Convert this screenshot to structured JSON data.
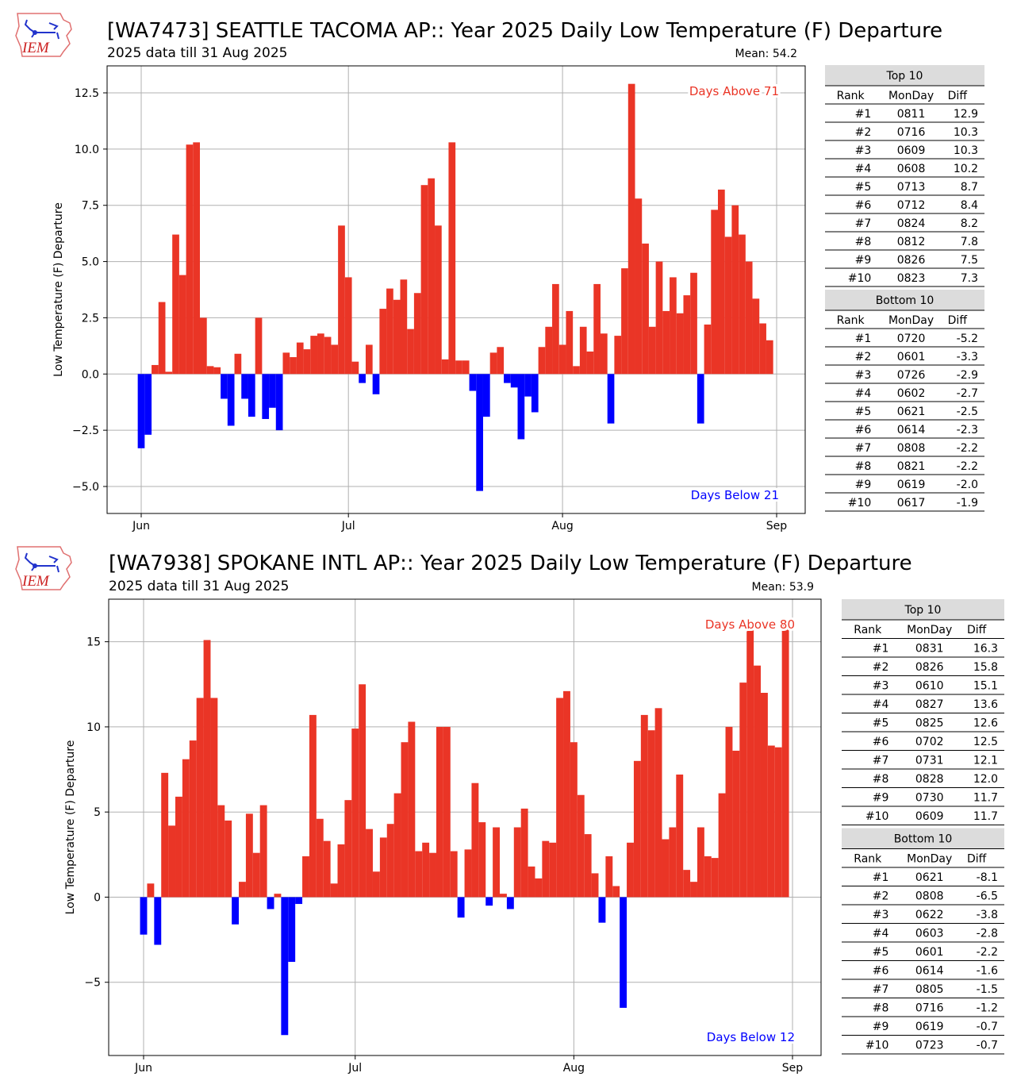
{
  "colors": {
    "above": "#ea3526",
    "below": "#0000ff",
    "grid": "#b0b0b0",
    "table_band": "#dcdcdc"
  },
  "chart_data": [
    {
      "type": "bar",
      "logo_text": "IEM",
      "title": "[WA7473] SEATTLE TACOMA AP:: Year 2025 Daily Low Temperature (F) Departure",
      "subtitle": "2025 data till 31 Aug 2025",
      "mean_label": "Mean: 54.2",
      "ylabel": "Low Temperature (F) Departure",
      "ylim": [
        -6.2,
        13.7
      ],
      "yticks": [
        12.5,
        10.0,
        7.5,
        5.0,
        2.5,
        0.0,
        -2.5,
        -5.0
      ],
      "ytick_labels": [
        "12.5",
        "10.0",
        "7.5",
        "5.0",
        "2.5",
        "0.0",
        "−2.5",
        "−5.0"
      ],
      "xticks": [
        {
          "day": 0,
          "label": "Jun"
        },
        {
          "day": 30,
          "label": "Jul"
        },
        {
          "day": 61,
          "label": "Aug"
        },
        {
          "day": 92,
          "label": "Sep"
        }
      ],
      "start_date": "Jun 1",
      "days_above_label": "Days Above 71",
      "days_below_label": "Days Below 21",
      "values": [
        -3.3,
        -2.7,
        0.4,
        3.2,
        0.1,
        6.2,
        4.4,
        10.2,
        10.3,
        2.5,
        0.35,
        0.3,
        -1.1,
        -2.3,
        0.9,
        -1.1,
        -1.9,
        2.5,
        -2.0,
        -1.5,
        -2.5,
        0.95,
        0.75,
        1.4,
        1.1,
        1.7,
        1.8,
        1.65,
        1.3,
        6.6,
        4.3,
        0.55,
        -0.4,
        1.3,
        -0.9,
        2.9,
        3.8,
        3.3,
        4.2,
        2.0,
        3.6,
        8.4,
        8.7,
        6.6,
        0.65,
        10.3,
        0.6,
        0.6,
        -0.75,
        -5.2,
        -1.9,
        0.95,
        1.2,
        -0.4,
        -0.6,
        -2.9,
        -1.0,
        -1.7,
        1.2,
        2.1,
        4.0,
        1.3,
        2.8,
        0.35,
        2.1,
        1.0,
        4.0,
        1.8,
        -2.2,
        1.7,
        4.7,
        12.9,
        7.8,
        5.8,
        2.1,
        5.0,
        2.8,
        4.3,
        2.7,
        3.5,
        4.5,
        -2.2,
        2.2,
        7.3,
        8.2,
        6.1,
        7.5,
        6.2,
        5.0,
        3.35,
        2.25,
        1.5
      ],
      "table": {
        "top_header": "Top 10",
        "bottom_header": "Bottom 10",
        "columns": [
          "Rank",
          "MonDay",
          "Diff"
        ],
        "top": [
          [
            "#1",
            "0811",
            "12.9"
          ],
          [
            "#2",
            "0716",
            "10.3"
          ],
          [
            "#3",
            "0609",
            "10.3"
          ],
          [
            "#4",
            "0608",
            "10.2"
          ],
          [
            "#5",
            "0713",
            "8.7"
          ],
          [
            "#6",
            "0712",
            "8.4"
          ],
          [
            "#7",
            "0824",
            "8.2"
          ],
          [
            "#8",
            "0812",
            "7.8"
          ],
          [
            "#9",
            "0826",
            "7.5"
          ],
          [
            "#10",
            "0823",
            "7.3"
          ]
        ],
        "bottom": [
          [
            "#1",
            "0720",
            "-5.2"
          ],
          [
            "#2",
            "0601",
            "-3.3"
          ],
          [
            "#3",
            "0726",
            "-2.9"
          ],
          [
            "#4",
            "0602",
            "-2.7"
          ],
          [
            "#5",
            "0621",
            "-2.5"
          ],
          [
            "#6",
            "0614",
            "-2.3"
          ],
          [
            "#7",
            "0808",
            "-2.2"
          ],
          [
            "#8",
            "0821",
            "-2.2"
          ],
          [
            "#9",
            "0619",
            "-2.0"
          ],
          [
            "#10",
            "0617",
            "-1.9"
          ]
        ]
      }
    },
    {
      "type": "bar",
      "logo_text": "IEM",
      "title": "[WA7938] SPOKANE INTL AP:: Year 2025 Daily Low Temperature (F) Departure",
      "subtitle": "2025 data till 31 Aug 2025",
      "mean_label": "Mean: 53.9",
      "ylabel": "Low Temperature (F) Departure",
      "ylim": [
        -9.3,
        17.5
      ],
      "yticks": [
        15,
        10,
        5,
        0,
        -5
      ],
      "ytick_labels": [
        "15",
        "10",
        "5",
        "0",
        "−5"
      ],
      "xticks": [
        {
          "day": 0,
          "label": "Jun"
        },
        {
          "day": 30,
          "label": "Jul"
        },
        {
          "day": 61,
          "label": "Aug"
        },
        {
          "day": 92,
          "label": "Sep"
        }
      ],
      "start_date": "Jun 1",
      "days_above_label": "Days Above 80",
      "days_below_label": "Days Below 12",
      "values": [
        -2.2,
        0.8,
        -2.8,
        7.3,
        4.2,
        5.9,
        8.1,
        9.2,
        11.7,
        15.1,
        11.7,
        5.4,
        4.5,
        -1.6,
        0.9,
        4.9,
        2.6,
        5.4,
        -0.7,
        0.2,
        -8.1,
        -3.8,
        -0.4,
        2.4,
        10.7,
        4.6,
        3.3,
        0.8,
        3.1,
        5.7,
        9.9,
        12.5,
        4.0,
        1.5,
        3.5,
        4.3,
        6.1,
        9.1,
        10.3,
        2.7,
        3.2,
        2.6,
        10.0,
        10.0,
        2.7,
        -1.2,
        2.8,
        6.7,
        4.4,
        -0.5,
        4.1,
        0.2,
        -0.7,
        4.1,
        5.2,
        1.8,
        1.1,
        3.3,
        3.2,
        11.7,
        12.1,
        9.1,
        6.0,
        3.7,
        1.4,
        -1.5,
        2.4,
        0.65,
        -6.5,
        3.2,
        8.0,
        10.7,
        9.8,
        11.1,
        3.4,
        4.1,
        7.2,
        1.6,
        0.9,
        4.1,
        2.4,
        2.3,
        6.1,
        10.0,
        8.6,
        12.6,
        15.8,
        13.6,
        12.0,
        8.9,
        8.8,
        16.3
      ],
      "table": {
        "top_header": "Top 10",
        "bottom_header": "Bottom 10",
        "columns": [
          "Rank",
          "MonDay",
          "Diff"
        ],
        "top": [
          [
            "#1",
            "0831",
            "16.3"
          ],
          [
            "#2",
            "0826",
            "15.8"
          ],
          [
            "#3",
            "0610",
            "15.1"
          ],
          [
            "#4",
            "0827",
            "13.6"
          ],
          [
            "#5",
            "0825",
            "12.6"
          ],
          [
            "#6",
            "0702",
            "12.5"
          ],
          [
            "#7",
            "0731",
            "12.1"
          ],
          [
            "#8",
            "0828",
            "12.0"
          ],
          [
            "#9",
            "0730",
            "11.7"
          ],
          [
            "#10",
            "0609",
            "11.7"
          ]
        ],
        "bottom": [
          [
            "#1",
            "0621",
            "-8.1"
          ],
          [
            "#2",
            "0808",
            "-6.5"
          ],
          [
            "#3",
            "0622",
            "-3.8"
          ],
          [
            "#4",
            "0603",
            "-2.8"
          ],
          [
            "#5",
            "0601",
            "-2.2"
          ],
          [
            "#6",
            "0614",
            "-1.6"
          ],
          [
            "#7",
            "0805",
            "-1.5"
          ],
          [
            "#8",
            "0716",
            "-1.2"
          ],
          [
            "#9",
            "0619",
            "-0.7"
          ],
          [
            "#10",
            "0723",
            "-0.7"
          ]
        ]
      }
    }
  ]
}
